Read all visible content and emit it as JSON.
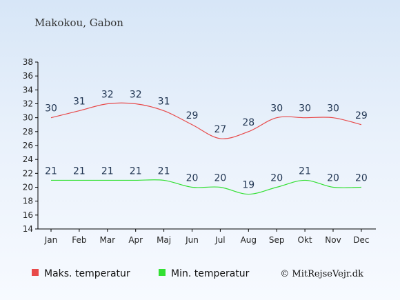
{
  "chart_data": {
    "type": "line",
    "title": "Makokou, Gabon",
    "xlabel": "",
    "ylabel": "",
    "categories": [
      "Jan",
      "Feb",
      "Mar",
      "Apr",
      "Maj",
      "Jun",
      "Jul",
      "Aug",
      "Sep",
      "Okt",
      "Nov",
      "Dec"
    ],
    "ylim": [
      14,
      38
    ],
    "yticks": [
      14,
      16,
      18,
      20,
      22,
      24,
      26,
      28,
      30,
      32,
      34,
      36,
      38
    ],
    "grid": false,
    "legend_position": "bottom-left",
    "series": [
      {
        "name": "Maks. temperatur",
        "color": "#e84a4a",
        "values": [
          30,
          31,
          32,
          32,
          31,
          29,
          27,
          28,
          30,
          30,
          30,
          29
        ]
      },
      {
        "name": "Min. temperatur",
        "color": "#33e033",
        "values": [
          21,
          21,
          21,
          21,
          21,
          20,
          20,
          19,
          20,
          21,
          20,
          20
        ]
      }
    ],
    "credit": "© MitRejseVejr.dk"
  }
}
